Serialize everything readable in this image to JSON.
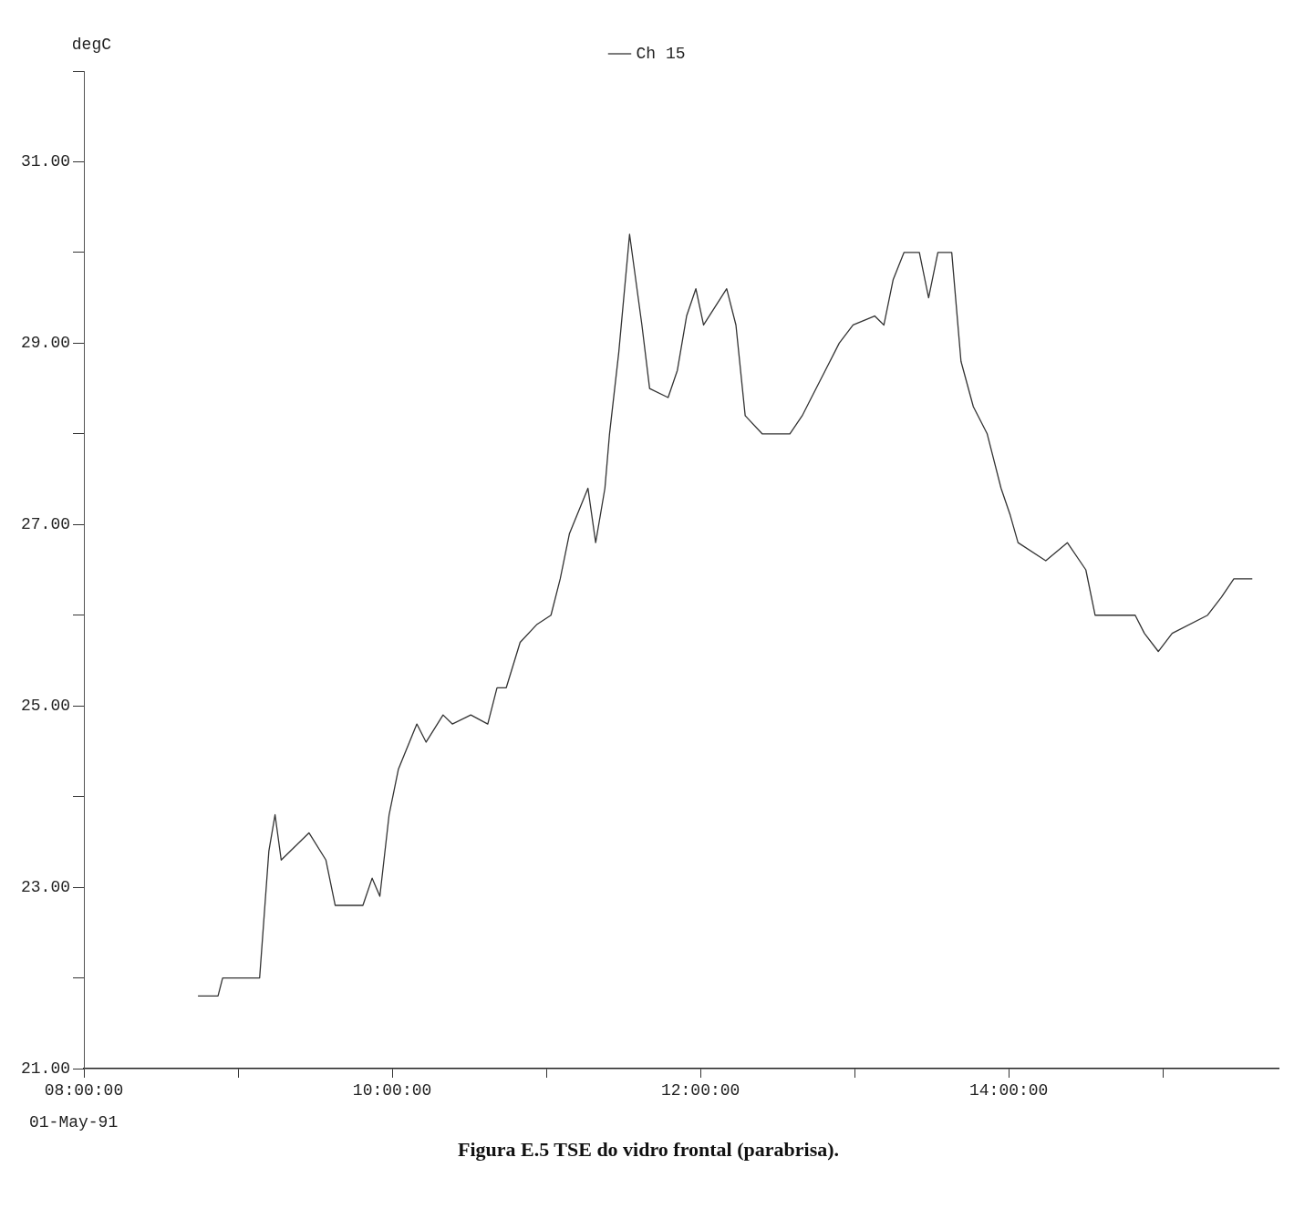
{
  "chart_data": {
    "type": "line",
    "title": "Figura E.5 TSE do vidro frontal (parabrisa).",
    "ylabel": "degC",
    "annotations": [
      "01-May-91"
    ],
    "xlim": [
      8,
      15.75
    ],
    "xticks": [
      {
        "value": 8,
        "label": "08:00:00"
      },
      {
        "value": 9,
        "label": null
      },
      {
        "value": 10,
        "label": "10:00:00"
      },
      {
        "value": 11,
        "label": null
      },
      {
        "value": 12,
        "label": "12:00:00"
      },
      {
        "value": 13,
        "label": null
      },
      {
        "value": 14,
        "label": "14:00:00"
      },
      {
        "value": 15,
        "label": null
      }
    ],
    "ylim": [
      21,
      32
    ],
    "yticks": [
      {
        "value": 21,
        "label": "21.00"
      },
      {
        "value": 22,
        "label": null
      },
      {
        "value": 23,
        "label": "23.00"
      },
      {
        "value": 24,
        "label": null
      },
      {
        "value": 25,
        "label": "25.00"
      },
      {
        "value": 26,
        "label": null
      },
      {
        "value": 27,
        "label": "27.00"
      },
      {
        "value": 28,
        "label": null
      },
      {
        "value": 29,
        "label": "29.00"
      },
      {
        "value": 30,
        "label": null
      },
      {
        "value": 31,
        "label": "31.00"
      },
      {
        "value": 32,
        "label": null
      }
    ],
    "grid": false,
    "legend": "top",
    "marker": "none",
    "line_style": "solid",
    "series": [
      {
        "name": "Ch 15",
        "color": "#333333",
        "x": [
          8.74,
          8.87,
          8.9,
          9.14,
          9.2,
          9.24,
          9.28,
          9.46,
          9.57,
          9.63,
          9.81,
          9.87,
          9.92,
          9.98,
          10.04,
          10.16,
          10.22,
          10.33,
          10.39,
          10.51,
          10.62,
          10.68,
          10.74,
          10.83,
          10.94,
          11.03,
          11.09,
          11.15,
          11.27,
          11.32,
          11.38,
          11.41,
          11.47,
          11.54,
          11.62,
          11.67,
          11.79,
          11.85,
          11.91,
          11.97,
          12.02,
          12.17,
          12.23,
          12.29,
          12.4,
          12.58,
          12.66,
          12.72,
          12.81,
          12.9,
          12.99,
          13.13,
          13.19,
          13.25,
          13.32,
          13.42,
          13.48,
          13.54,
          13.63,
          13.69,
          13.77,
          13.86,
          13.95,
          14.01,
          14.06,
          14.24,
          14.38,
          14.5,
          14.56,
          14.82,
          14.88,
          14.97,
          15.06,
          15.29,
          15.38,
          15.46,
          15.58
        ],
        "values": [
          21.8,
          21.8,
          22.0,
          22.0,
          23.4,
          23.8,
          23.3,
          23.6,
          23.3,
          22.8,
          22.8,
          23.1,
          22.9,
          23.8,
          24.3,
          24.8,
          24.6,
          24.9,
          24.8,
          24.9,
          24.8,
          25.2,
          25.2,
          25.7,
          25.9,
          26.0,
          26.4,
          26.9,
          27.4,
          26.8,
          27.4,
          28.0,
          28.9,
          30.2,
          29.2,
          28.5,
          28.4,
          28.7,
          29.3,
          29.6,
          29.2,
          29.6,
          29.2,
          28.2,
          28.0,
          28.0,
          28.2,
          28.4,
          28.7,
          29.0,
          29.2,
          29.3,
          29.2,
          29.7,
          30.0,
          30.0,
          29.5,
          30.0,
          30.0,
          28.8,
          28.3,
          28.0,
          27.4,
          27.1,
          26.8,
          26.6,
          26.8,
          26.5,
          26.0,
          26.0,
          25.8,
          25.6,
          25.8,
          26.0,
          26.2,
          26.4,
          26.4
        ]
      }
    ]
  }
}
